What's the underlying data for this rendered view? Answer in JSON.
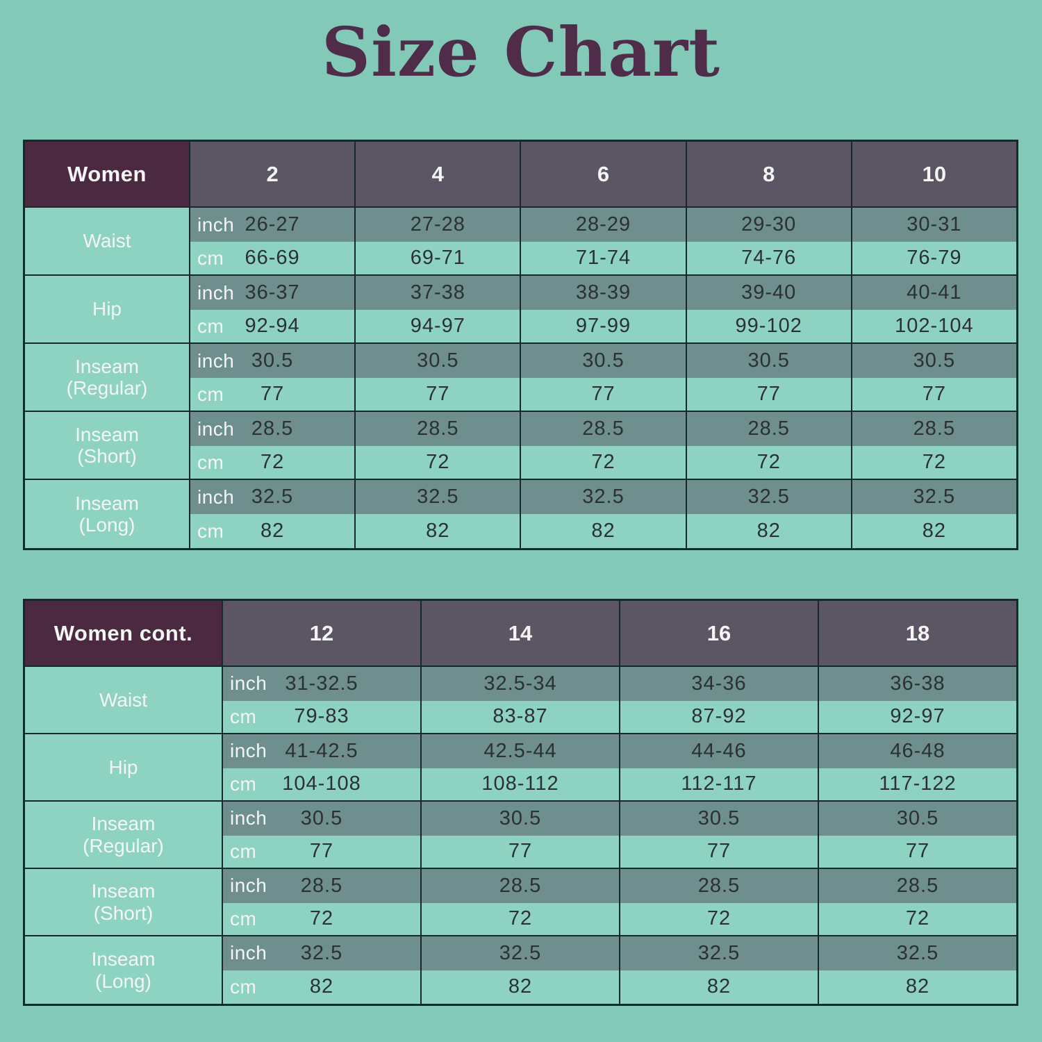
{
  "title": "Size Chart",
  "units": {
    "inch": "inch",
    "cm": "cm"
  },
  "colors": {
    "background": "#82c9b7",
    "light_cell": "#8ed3c1",
    "inch_row_cell": "#6f8e8e",
    "size_header_cell": "#5c5564",
    "corner_header_cell": "#4a2941",
    "table_border": "#16282b",
    "value_text": "#2b3036",
    "white_text": "#f3f6f5",
    "title_text": "#4f2c4a"
  },
  "tables": [
    {
      "header_label": "Women",
      "sizes": [
        "2",
        "4",
        "6",
        "8",
        "10"
      ],
      "rows": [
        {
          "label": "Waist",
          "label2": "",
          "inch": [
            "26-27",
            "27-28",
            "28-29",
            "29-30",
            "30-31"
          ],
          "cm": [
            "66-69",
            "69-71",
            "71-74",
            "74-76",
            "76-79"
          ]
        },
        {
          "label": "Hip",
          "label2": "",
          "inch": [
            "36-37",
            "37-38",
            "38-39",
            "39-40",
            "40-41"
          ],
          "cm": [
            "92-94",
            "94-97",
            "97-99",
            "99-102",
            "102-104"
          ]
        },
        {
          "label": "Inseam",
          "label2": "(Regular)",
          "inch": [
            "30.5",
            "30.5",
            "30.5",
            "30.5",
            "30.5"
          ],
          "cm": [
            "77",
            "77",
            "77",
            "77",
            "77"
          ]
        },
        {
          "label": "Inseam",
          "label2": "(Short)",
          "inch": [
            "28.5",
            "28.5",
            "28.5",
            "28.5",
            "28.5"
          ],
          "cm": [
            "72",
            "72",
            "72",
            "72",
            "72"
          ]
        },
        {
          "label": "Inseam",
          "label2": "(Long)",
          "inch": [
            "32.5",
            "32.5",
            "32.5",
            "32.5",
            "32.5"
          ],
          "cm": [
            "82",
            "82",
            "82",
            "82",
            "82"
          ]
        }
      ]
    },
    {
      "header_label": "Women cont.",
      "sizes": [
        "12",
        "14",
        "16",
        "18"
      ],
      "rows": [
        {
          "label": "Waist",
          "label2": "",
          "inch": [
            "31-32.5",
            "32.5-34",
            "34-36",
            "36-38"
          ],
          "cm": [
            "79-83",
            "83-87",
            "87-92",
            "92-97"
          ]
        },
        {
          "label": "Hip",
          "label2": "",
          "inch": [
            "41-42.5",
            "42.5-44",
            "44-46",
            "46-48"
          ],
          "cm": [
            "104-108",
            "108-112",
            "112-117",
            "117-122"
          ]
        },
        {
          "label": "Inseam",
          "label2": "(Regular)",
          "inch": [
            "30.5",
            "30.5",
            "30.5",
            "30.5"
          ],
          "cm": [
            "77",
            "77",
            "77",
            "77"
          ]
        },
        {
          "label": "Inseam",
          "label2": "(Short)",
          "inch": [
            "28.5",
            "28.5",
            "28.5",
            "28.5"
          ],
          "cm": [
            "72",
            "72",
            "72",
            "72"
          ]
        },
        {
          "label": "Inseam",
          "label2": "(Long)",
          "inch": [
            "32.5",
            "32.5",
            "32.5",
            "32.5"
          ],
          "cm": [
            "82",
            "82",
            "82",
            "82"
          ]
        }
      ]
    }
  ]
}
